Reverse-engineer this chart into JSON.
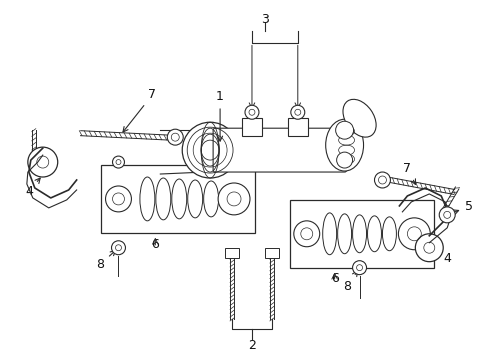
{
  "background_color": "#ffffff",
  "fig_width": 4.89,
  "fig_height": 3.6,
  "dpi": 100,
  "line_color": "#2a2a2a",
  "label_fontsize": 9,
  "label_color": "#111111"
}
